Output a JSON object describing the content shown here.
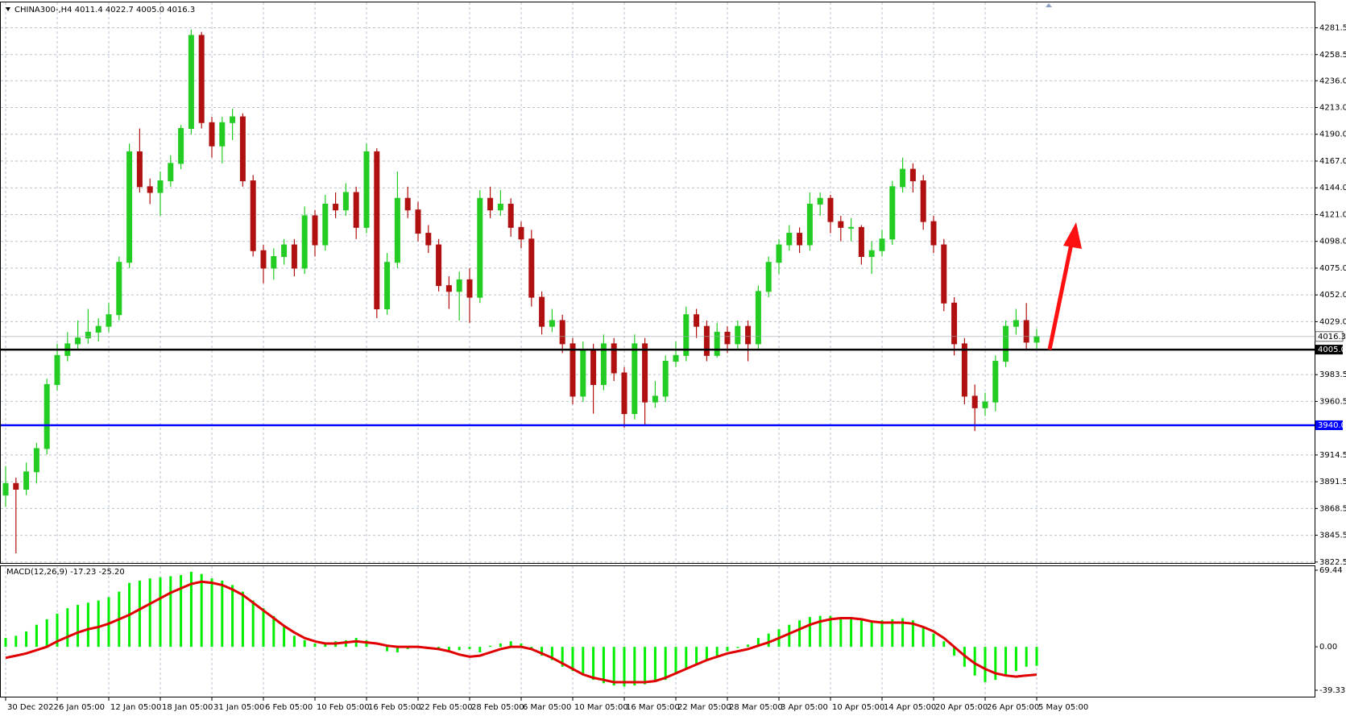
{
  "chart_data": [
    {
      "type": "candlestick",
      "title": "CHINA300-,H4  4011.4 4022.7 4005.0 4016.3",
      "up_color": "#22cc22",
      "down_color": "#b01010",
      "ylim": [
        3821,
        4304
      ],
      "yticks": [
        4281.5,
        4258.5,
        {
          "value": 4236,
          "label": "4236.0"
        },
        {
          "value": 4213,
          "label": "4213.0"
        },
        {
          "value": 4190,
          "label": "4190.0"
        },
        {
          "value": 4167,
          "label": "4167.0"
        },
        {
          "value": 4144,
          "label": "4144.0"
        },
        {
          "value": 4121,
          "label": "4121.0"
        },
        {
          "value": 4098,
          "label": "4098.0"
        },
        {
          "value": 4075,
          "label": "4075.0"
        },
        {
          "value": 4052,
          "label": "4052.0"
        },
        {
          "value": 4029,
          "label": "4029.0"
        },
        3983.5,
        3960.5,
        3914.5,
        3891.5,
        3868.5,
        3845.5,
        3822.5
      ],
      "grid": true,
      "levels": [
        {
          "value": 4005,
          "label": "4005.0",
          "color": "#000000"
        },
        {
          "value": 3940,
          "label": "3940.0",
          "color": "#0000ff"
        }
      ],
      "last_price": 4016.3,
      "categories": [
        "30 Dec 2022",
        null,
        null,
        null,
        null,
        "6 Jan 05:00",
        null,
        null,
        null,
        null,
        "12 Jan 05:00",
        null,
        null,
        null,
        null,
        "18 Jan 05:00",
        null,
        null,
        null,
        null,
        "31 Jan 05:00",
        null,
        null,
        null,
        null,
        "6 Feb 05:00",
        null,
        null,
        null,
        null,
        "10 Feb 05:00",
        null,
        null,
        null,
        null,
        "16 Feb 05:00",
        null,
        null,
        null,
        null,
        "22 Feb 05:00",
        null,
        null,
        null,
        null,
        "28 Feb 05:00",
        null,
        null,
        null,
        null,
        "6 Mar 05:00",
        null,
        null,
        null,
        null,
        "10 Mar 05:00",
        null,
        null,
        null,
        null,
        "16 Mar 05:00",
        null,
        null,
        null,
        null,
        "22 Mar 05:00",
        null,
        null,
        null,
        null,
        "28 Mar 05:00",
        null,
        null,
        null,
        null,
        "3 Apr 05:00",
        null,
        null,
        null,
        null,
        "10 Apr 05:00",
        null,
        null,
        null,
        null,
        "14 Apr 05:00",
        null,
        null,
        null,
        null,
        "20 Apr 05:00",
        null,
        null,
        null,
        null,
        "26 Apr 05:00",
        null,
        null,
        null,
        null,
        "5 May 05:00"
      ],
      "ohlc": [
        [
          3880,
          3905,
          3870,
          3890
        ],
        [
          3890,
          3895,
          3830,
          3885
        ],
        [
          3885,
          3908,
          3880,
          3900
        ],
        [
          3900,
          3925,
          3890,
          3920
        ],
        [
          3920,
          3980,
          3915,
          3975
        ],
        [
          3975,
          4010,
          3970,
          4000
        ],
        [
          4000,
          4020,
          3995,
          4010
        ],
        [
          4010,
          4030,
          4005,
          4015
        ],
        [
          4015,
          4040,
          4010,
          4020
        ],
        [
          4020,
          4032,
          4012,
          4025
        ],
        [
          4025,
          4045,
          4020,
          4035
        ],
        [
          4035,
          4085,
          4030,
          4080
        ],
        [
          4080,
          4182,
          4075,
          4175
        ],
        [
          4175,
          4195,
          4140,
          4145
        ],
        [
          4145,
          4152,
          4130,
          4140
        ],
        [
          4140,
          4158,
          4120,
          4150
        ],
        [
          4150,
          4172,
          4145,
          4165
        ],
        [
          4165,
          4198,
          4160,
          4195
        ],
        [
          4195,
          4280,
          4190,
          4275
        ],
        [
          4275,
          4278,
          4195,
          4200
        ],
        [
          4200,
          4205,
          4170,
          4180
        ],
        [
          4180,
          4205,
          4165,
          4200
        ],
        [
          4200,
          4212,
          4185,
          4205
        ],
        [
          4205,
          4208,
          4145,
          4150
        ],
        [
          4150,
          4155,
          4085,
          4090
        ],
        [
          4090,
          4095,
          4062,
          4075
        ],
        [
          4075,
          4092,
          4065,
          4085
        ],
        [
          4085,
          4100,
          4078,
          4095
        ],
        [
          4095,
          4100,
          4068,
          4075
        ],
        [
          4075,
          4128,
          4070,
          4120
        ],
        [
          4120,
          4125,
          4085,
          4095
        ],
        [
          4095,
          4138,
          4090,
          4130
        ],
        [
          4130,
          4140,
          4118,
          4125
        ],
        [
          4125,
          4148,
          4120,
          4140
        ],
        [
          4140,
          4145,
          4100,
          4110
        ],
        [
          4110,
          4182,
          4105,
          4175
        ],
        [
          4175,
          4178,
          4032,
          4040
        ],
        [
          4040,
          4088,
          4035,
          4080
        ],
        [
          4080,
          4158,
          4075,
          4135
        ],
        [
          4135,
          4145,
          4118,
          4125
        ],
        [
          4125,
          4132,
          4098,
          4105
        ],
        [
          4105,
          4112,
          4088,
          4095
        ],
        [
          4095,
          4100,
          4055,
          4060
        ],
        [
          4060,
          4068,
          4040,
          4055
        ],
        [
          4055,
          4072,
          4030,
          4065
        ],
        [
          4065,
          4075,
          4028,
          4050
        ],
        [
          4050,
          4142,
          4045,
          4135
        ],
        [
          4135,
          4145,
          4118,
          4125
        ],
        [
          4125,
          4142,
          4120,
          4130
        ],
        [
          4130,
          4135,
          4102,
          4110
        ],
        [
          4110,
          4115,
          4092,
          4100
        ],
        [
          4100,
          4108,
          4042,
          4050
        ],
        [
          4050,
          4055,
          4018,
          4025
        ],
        [
          4025,
          4040,
          4020,
          4030
        ],
        [
          4030,
          4035,
          4002,
          4010
        ],
        [
          4010,
          4015,
          3958,
          3965
        ],
        [
          3965,
          4012,
          3960,
          4005
        ],
        [
          4005,
          4010,
          3950,
          3975
        ],
        [
          3975,
          4018,
          3970,
          4010
        ],
        [
          4010,
          4015,
          3978,
          3985
        ],
        [
          3985,
          3990,
          3938,
          3950
        ],
        [
          3950,
          4018,
          3945,
          4010
        ],
        [
          4010,
          4015,
          3940,
          3960
        ],
        [
          3960,
          3978,
          3955,
          3965
        ],
        [
          3965,
          4000,
          3960,
          3995
        ],
        [
          3995,
          4012,
          3990,
          4000
        ],
        [
          4000,
          4042,
          3995,
          4035
        ],
        [
          4035,
          4040,
          4015,
          4025
        ],
        [
          4025,
          4030,
          3995,
          4000
        ],
        [
          4000,
          4028,
          3998,
          4020
        ],
        [
          4020,
          4025,
          4002,
          4010
        ],
        [
          4010,
          4030,
          4005,
          4025
        ],
        [
          4025,
          4030,
          3995,
          4010
        ],
        [
          4010,
          4060,
          4005,
          4055
        ],
        [
          4055,
          4085,
          4050,
          4080
        ],
        [
          4080,
          4100,
          4070,
          4095
        ],
        [
          4095,
          4112,
          4090,
          4105
        ],
        [
          4105,
          4110,
          4088,
          4095
        ],
        [
          4095,
          4140,
          4090,
          4130
        ],
        [
          4130,
          4140,
          4120,
          4135
        ],
        [
          4135,
          4138,
          4105,
          4115
        ],
        [
          4115,
          4120,
          4098,
          4110
        ],
        [
          4110,
          4118,
          4098,
          4110
        ],
        [
          4110,
          4112,
          4078,
          4085
        ],
        [
          4085,
          4098,
          4070,
          4090
        ],
        [
          4090,
          4108,
          4085,
          4100
        ],
        [
          4100,
          4150,
          4095,
          4145
        ],
        [
          4145,
          4170,
          4140,
          4160
        ],
        [
          4160,
          4165,
          4140,
          4150
        ],
        [
          4150,
          4155,
          4108,
          4115
        ],
        [
          4115,
          4120,
          4088,
          4095
        ],
        [
          4095,
          4100,
          4038,
          4045
        ],
        [
          4045,
          4050,
          4000,
          4010
        ],
        [
          4010,
          4015,
          3958,
          3965
        ],
        [
          3965,
          3975,
          3935,
          3955
        ],
        [
          3955,
          3968,
          3948,
          3960
        ],
        [
          3960,
          4000,
          3952,
          3995
        ],
        [
          3995,
          4030,
          3990,
          4025
        ],
        [
          4025,
          4040,
          4018,
          4030
        ],
        [
          4030,
          4045,
          4005,
          4011.4
        ],
        [
          4011.4,
          4022.7,
          4005,
          4016.3
        ]
      ]
    },
    {
      "type": "macd",
      "title": "MACD(12,26,9) -17.23 -25.20",
      "ylim": [
        -45.9,
        73.8
      ],
      "yticks": [
        69.44,
        {
          "value": 0,
          "label": "0.00"
        },
        -39.33
      ],
      "series": [
        {
          "style": "histogram",
          "color": "#00ee00",
          "values": [
            8,
            10,
            14,
            20,
            25,
            30,
            35,
            38,
            40,
            42,
            45,
            50,
            58,
            60,
            62,
            63,
            64,
            65,
            68,
            66,
            62,
            60,
            56,
            50,
            42,
            35,
            28,
            18,
            10,
            6,
            3,
            4,
            5,
            6,
            8,
            6,
            0,
            -4,
            -5,
            -2,
            0,
            -1,
            -3,
            -4,
            -3,
            -2,
            -5,
            1,
            3,
            5,
            3,
            -3,
            -8,
            -12,
            -18,
            -22,
            -26,
            -30,
            -33,
            -35,
            -36,
            -35,
            -34,
            -32,
            -30,
            -25,
            -20,
            -15,
            -12,
            -8,
            -4,
            -1,
            2,
            8,
            12,
            16,
            20,
            24,
            27,
            28,
            28,
            27,
            26,
            24,
            23,
            24,
            25,
            26,
            24,
            18,
            12,
            5,
            -8,
            -18,
            -26,
            -32,
            -30,
            -25,
            -22,
            -18,
            -17.23
          ]
        },
        {
          "style": "line",
          "color": "#e00000",
          "values": [
            -10,
            -8,
            -6,
            -3,
            0,
            5,
            9,
            13,
            16,
            18,
            21,
            25,
            29,
            34,
            39,
            44,
            49,
            53,
            57,
            59,
            58,
            56,
            52,
            47,
            40,
            33,
            26,
            19,
            13,
            8,
            5,
            3,
            3,
            4,
            5,
            4,
            3,
            1,
            0,
            0,
            0,
            -1,
            -2,
            -4,
            -7,
            -9,
            -8,
            -5,
            -2,
            0,
            0,
            -2,
            -6,
            -10,
            -15,
            -20,
            -25,
            -28,
            -30,
            -32,
            -32,
            -32,
            -32,
            -31,
            -28,
            -24,
            -20,
            -16,
            -12,
            -9,
            -6,
            -4,
            -2,
            1,
            4,
            8,
            12,
            16,
            20,
            23,
            25,
            26,
            26,
            25,
            23,
            22,
            22,
            22,
            21,
            18,
            14,
            8,
            0,
            -8,
            -15,
            -20,
            -24,
            -26,
            -27,
            -26,
            -25.2
          ]
        }
      ]
    }
  ]
}
